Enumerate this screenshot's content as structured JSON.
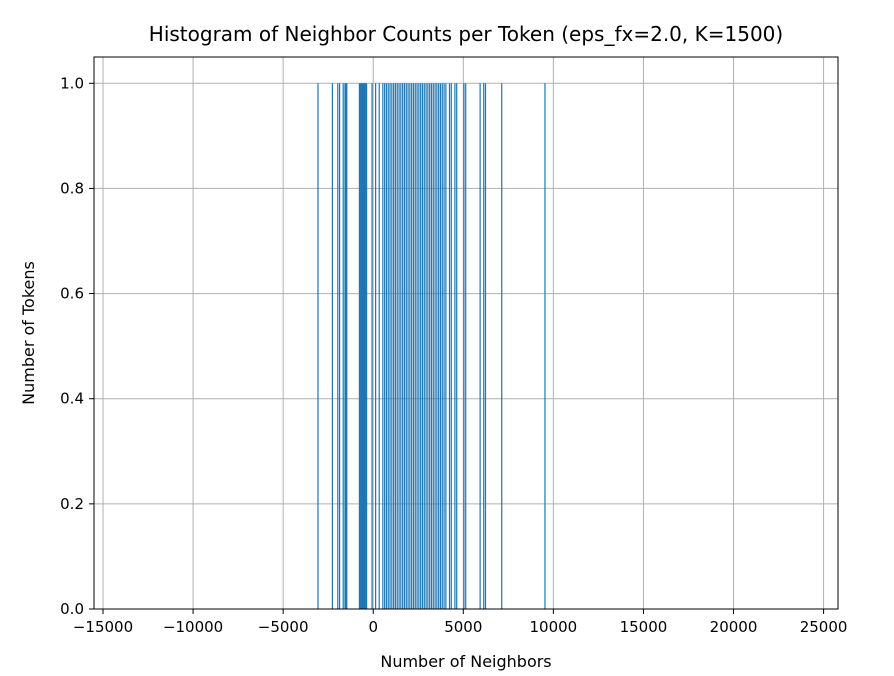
{
  "chart_data": {
    "type": "bar",
    "title": "Histogram of Neighbor Counts per Token (eps_fx=2.0, K=1500)",
    "xlabel": "Number of Neighbors",
    "ylabel": "Number of Tokens",
    "xlim": [
      -15500,
      25800
    ],
    "ylim": [
      0,
      1.05
    ],
    "grid": true,
    "bar_color": "#1f77b4",
    "x_ticks": [
      -15000,
      -10000,
      -5000,
      0,
      5000,
      10000,
      15000,
      20000,
      25000
    ],
    "x_tick_labels": [
      "−15000",
      "−10000",
      "−5000",
      "0",
      "5000",
      "10000",
      "15000",
      "20000",
      "25000"
    ],
    "y_ticks": [
      0.0,
      0.2,
      0.4,
      0.6,
      0.8,
      1.0
    ],
    "y_tick_labels": [
      "0.0",
      "0.2",
      "0.4",
      "0.6",
      "0.8",
      "1.0"
    ],
    "bar_width": 30,
    "x": [
      -3100,
      -2300,
      -2000,
      -1900,
      -1700,
      -1600,
      -1550,
      -1500,
      -800,
      -750,
      -700,
      -650,
      -600,
      -550,
      -500,
      -450,
      -400,
      -100,
      100,
      300,
      500,
      600,
      700,
      800,
      900,
      1000,
      1100,
      1200,
      1300,
      1400,
      1500,
      1600,
      1700,
      1800,
      1900,
      2000,
      2100,
      2200,
      2300,
      2400,
      2500,
      2600,
      2700,
      2800,
      2900,
      3000,
      3100,
      3200,
      3300,
      3400,
      3500,
      3600,
      3700,
      3800,
      3900,
      4000,
      4200,
      4300,
      4500,
      4600,
      5000,
      5100,
      5900,
      6100,
      6200,
      7100,
      9500
    ],
    "values": [
      1,
      1,
      1,
      1,
      1,
      1,
      1,
      1,
      1,
      1,
      1,
      1,
      1,
      1,
      1,
      1,
      1,
      1,
      1,
      1,
      1,
      1,
      1,
      1,
      1,
      1,
      1,
      1,
      1,
      1,
      1,
      1,
      1,
      1,
      1,
      1,
      1,
      1,
      1,
      1,
      1,
      1,
      1,
      1,
      1,
      1,
      1,
      1,
      1,
      1,
      1,
      1,
      1,
      1,
      1,
      1,
      1,
      1,
      1,
      1,
      1,
      1,
      1,
      1,
      1,
      1,
      1
    ]
  }
}
